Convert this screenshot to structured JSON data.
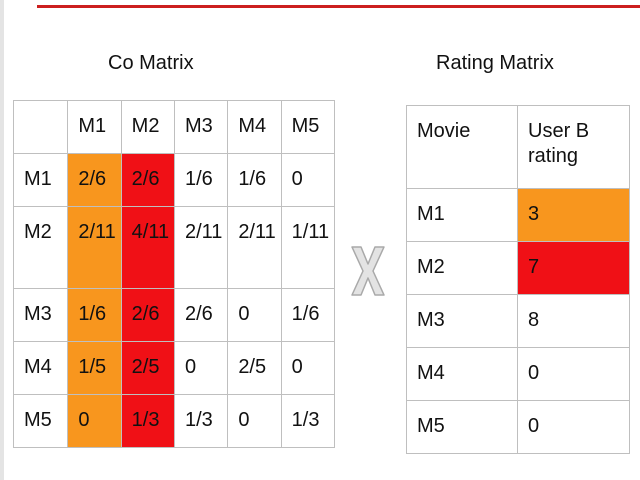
{
  "titles": {
    "co_matrix": "Co Matrix",
    "rating_matrix": "Rating Matrix"
  },
  "co_matrix": {
    "header": [
      "",
      "M1",
      "M2",
      "M3",
      "M4",
      "M5"
    ],
    "rows": [
      [
        "M1",
        "2/6",
        "2/6",
        "1/6",
        "1/6",
        "0"
      ],
      [
        "M2",
        "2/11",
        "4/11",
        "2/11",
        "2/11",
        "1/11"
      ],
      [
        "M3",
        "1/6",
        "2/6",
        "2/6",
        "0",
        "1/6"
      ],
      [
        "M4",
        "1/5",
        "2/5",
        "0",
        "2/5",
        "0"
      ],
      [
        "M5",
        "0",
        "1/3",
        "1/3",
        "0",
        "1/3"
      ]
    ],
    "highlighted_columns": {
      "M1": "orange",
      "M2": "red"
    }
  },
  "rating_matrix": {
    "header": [
      "Movie",
      "User B rating"
    ],
    "rows": [
      [
        "M1",
        "3"
      ],
      [
        "M2",
        "7"
      ],
      [
        "M3",
        "8"
      ],
      [
        "M4",
        "0"
      ],
      [
        "M5",
        "0"
      ]
    ],
    "highlighted_rows": {
      "M1": "orange",
      "M2": "red"
    }
  },
  "operator_icon": "multiply-x-icon",
  "colors": {
    "orange": "#f8961e",
    "red": "#f01016",
    "rule": "#cc1f1f",
    "grid": "#bfbfbf",
    "operator": "#c8c8c8"
  }
}
